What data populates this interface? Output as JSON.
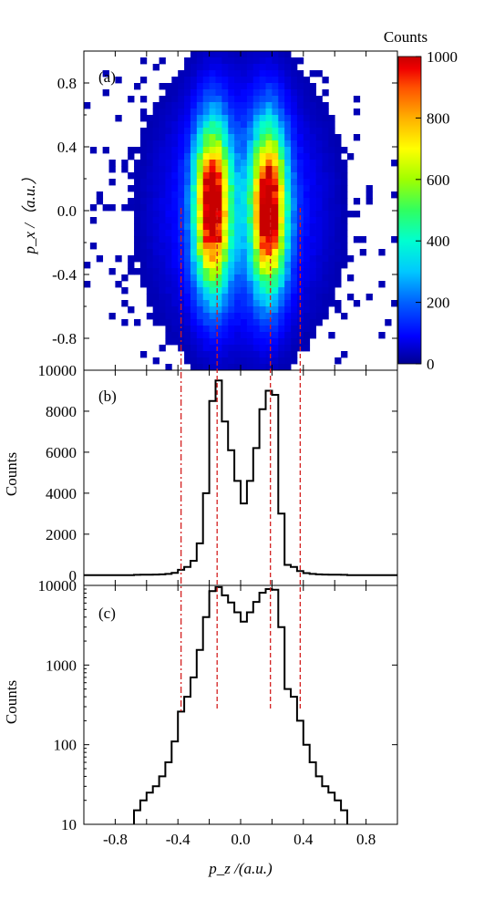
{
  "colors": {
    "histogram_line": "#000000",
    "guide_lines": "#d42020",
    "colormap": [
      "#00008f",
      "#0000ff",
      "#0060ff",
      "#00c8ff",
      "#00ffd0",
      "#30ff60",
      "#a0ff00",
      "#ffff00",
      "#ffb000",
      "#ff5000",
      "#f00000",
      "#c80000"
    ]
  },
  "chart_data": [
    {
      "panel": "(a)",
      "type": "heatmap",
      "xlim": [
        -1.0,
        1.0
      ],
      "ylim": [
        -1.0,
        1.0
      ],
      "ylabel": "p_x /（a.u.）",
      "yticks": [
        0.8,
        0.4,
        0.0,
        -0.4,
        -0.8
      ],
      "ytick_labels": [
        "0.8",
        "0.4",
        "0.0",
        "-0.4",
        "-0.8"
      ],
      "colorbar": {
        "title": "Counts",
        "min": 0,
        "max": 1000,
        "ticks": [
          0,
          200,
          400,
          600,
          800,
          1000
        ],
        "tick_labels": [
          "0",
          "200",
          "400",
          "600",
          "800",
          "1000"
        ]
      },
      "peaks": [
        {
          "x": -0.18,
          "y": 0.02,
          "value": 1000
        },
        {
          "x": 0.18,
          "y": 0.02,
          "value": 1000
        }
      ],
      "description_values": "Two elongated lobes centered near p_z = ±0.18 a.u., extending p_x from about -0.9 to 0.9 a.u.; sparse isolated counts fill a roughly elliptical region out to |p_z| ≈ 0.8."
    },
    {
      "panel": "(b)",
      "type": "histogram",
      "scale": "linear",
      "xlim": [
        -1.0,
        1.0
      ],
      "ylim": [
        -500,
        10000
      ],
      "ylabel": "Counts",
      "yticks": [
        0,
        2000,
        4000,
        6000,
        8000,
        10000
      ],
      "ytick_labels": [
        "0",
        "2000",
        "4000",
        "6000",
        "8000",
        "10000"
      ],
      "bin_width": 0.04,
      "x": [
        -0.98,
        -0.94,
        -0.9,
        -0.86,
        -0.82,
        -0.78,
        -0.74,
        -0.7,
        -0.66,
        -0.62,
        -0.58,
        -0.54,
        -0.5,
        -0.46,
        -0.42,
        -0.38,
        -0.34,
        -0.3,
        -0.26,
        -0.22,
        -0.18,
        -0.14,
        -0.1,
        -0.06,
        -0.02,
        0.02,
        0.06,
        0.1,
        0.14,
        0.18,
        0.22,
        0.26,
        0.3,
        0.34,
        0.38,
        0.42,
        0.46,
        0.5,
        0.54,
        0.58,
        0.62,
        0.66,
        0.7,
        0.74,
        0.78,
        0.82,
        0.86,
        0.9,
        0.94,
        0.98
      ],
      "values": [
        0,
        0,
        0,
        0,
        0,
        0,
        0,
        0,
        15,
        20,
        25,
        30,
        40,
        60,
        110,
        260,
        400,
        700,
        1550,
        4000,
        8500,
        9500,
        7500,
        6100,
        4600,
        3500,
        4600,
        6200,
        8100,
        9000,
        8800,
        3000,
        500,
        400,
        200,
        100,
        60,
        40,
        30,
        25,
        20,
        15,
        0,
        0,
        0,
        0,
        0,
        0,
        0,
        0
      ]
    },
    {
      "panel": "(c)",
      "type": "histogram",
      "scale": "log",
      "xlim": [
        -1.0,
        1.0
      ],
      "ylim": [
        10,
        10000
      ],
      "xlabel": "p_z /(a.u.)",
      "ylabel": "Counts",
      "yticks": [
        10,
        100,
        1000,
        10000
      ],
      "ytick_labels": [
        "10",
        "100",
        "1000",
        "10000"
      ],
      "xticks": [
        -0.8,
        -0.4,
        0.0,
        0.4,
        0.8
      ],
      "xtick_labels": [
        "-0.8",
        "-0.4",
        "0.0",
        "0.4",
        "0.8"
      ],
      "bin_width": 0.04,
      "x": [
        -0.98,
        -0.94,
        -0.9,
        -0.86,
        -0.82,
        -0.78,
        -0.74,
        -0.7,
        -0.66,
        -0.62,
        -0.58,
        -0.54,
        -0.5,
        -0.46,
        -0.42,
        -0.38,
        -0.34,
        -0.3,
        -0.26,
        -0.22,
        -0.18,
        -0.14,
        -0.1,
        -0.06,
        -0.02,
        0.02,
        0.06,
        0.1,
        0.14,
        0.18,
        0.22,
        0.26,
        0.3,
        0.34,
        0.38,
        0.42,
        0.46,
        0.5,
        0.54,
        0.58,
        0.62,
        0.66,
        0.7,
        0.74,
        0.78,
        0.82,
        0.86,
        0.9,
        0.94,
        0.98
      ],
      "values": [
        0,
        0,
        0,
        0,
        0,
        0,
        0,
        0,
        15,
        20,
        25,
        30,
        40,
        60,
        110,
        260,
        400,
        700,
        1550,
        4000,
        8500,
        9500,
        7500,
        6100,
        4600,
        3500,
        4600,
        6200,
        8100,
        9000,
        8800,
        3000,
        500,
        400,
        200,
        100,
        60,
        40,
        30,
        25,
        20,
        15,
        0,
        0,
        0,
        0,
        0,
        0,
        0,
        0
      ]
    }
  ],
  "guide_lines_pz": [
    -0.38,
    -0.15,
    0.19,
    0.38
  ]
}
